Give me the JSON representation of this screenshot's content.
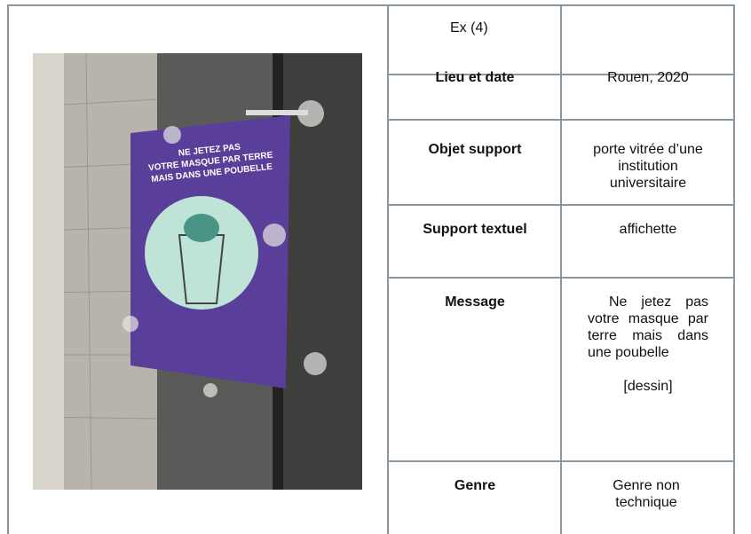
{
  "table": {
    "header": [
      "Ex (4)",
      ""
    ],
    "rows": [
      [
        "Lieu et date",
        "Rouen, 2020"
      ],
      [
        "Objet support",
        "porte vitrée d’une institution universitaire"
      ],
      [
        "Support textuel",
        "affichette"
      ],
      [
        "Message",
        "Ne jetez pas votre masque par terre mais dans une poubelle",
        "[dessin]"
      ],
      [
        "Genre",
        "Genre non technique"
      ]
    ]
  },
  "photo": {
    "poster_title": [
      "NE JETEZ PAS",
      "VOTRE MASQUE PAR TERRE",
      "MAIS DANS UNE POUBELLE"
    ]
  }
}
